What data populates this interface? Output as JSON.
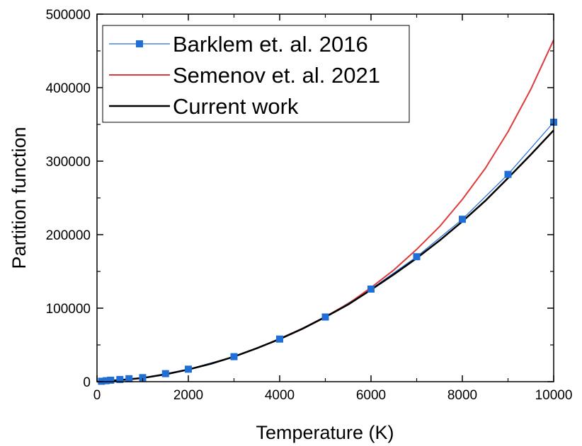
{
  "chart_data": {
    "type": "line",
    "title": "",
    "xlabel": "Temperature (K)",
    "ylabel": "Partition function",
    "xlim": [
      0,
      10000
    ],
    "ylim": [
      0,
      500000
    ],
    "x_ticks": [
      0,
      2000,
      4000,
      6000,
      8000,
      10000
    ],
    "y_ticks": [
      0,
      100000,
      200000,
      300000,
      400000,
      500000
    ],
    "x_tick_labels": [
      "0",
      "2000",
      "4000",
      "6000",
      "8000",
      "10000"
    ],
    "y_tick_labels": [
      "0",
      "100000",
      "200000",
      "300000",
      "400000",
      "500000"
    ],
    "grid": false,
    "legend_position": "top-left",
    "series": [
      {
        "name": "Barklem et. al. 2016",
        "color": "#1f6fd6",
        "style": "line-square-markers",
        "x": [
          100,
          200,
          300,
          500,
          700,
          1000,
          1500,
          2000,
          3000,
          4000,
          5000,
          6000,
          7000,
          8000,
          9000,
          10000
        ],
        "y": [
          600,
          1300,
          2000,
          3000,
          4000,
          5500,
          11000,
          17000,
          34000,
          58000,
          88000,
          126000,
          170000,
          221000,
          282000,
          353000
        ]
      },
      {
        "name": "Semenov et. al. 2021",
        "color": "#e03a3a",
        "style": "line",
        "x": [
          0,
          500,
          1000,
          1500,
          2000,
          2500,
          3000,
          3500,
          4000,
          4500,
          5000,
          5500,
          6000,
          6500,
          7000,
          7500,
          8000,
          8500,
          9000,
          9500,
          10000
        ],
        "y": [
          0,
          2000,
          5000,
          10000,
          16500,
          24500,
          34000,
          45500,
          58500,
          72500,
          88500,
          106000,
          128000,
          152000,
          180000,
          211000,
          248000,
          290000,
          340000,
          398000,
          465000
        ]
      },
      {
        "name": "Current work",
        "color": "#000000",
        "style": "line",
        "x": [
          0,
          500,
          1000,
          1500,
          2000,
          2500,
          3000,
          3500,
          4000,
          4500,
          5000,
          5500,
          6000,
          6500,
          7000,
          7500,
          8000,
          8500,
          9000,
          9500,
          10000
        ],
        "y": [
          0,
          2000,
          5000,
          10000,
          16500,
          24500,
          34000,
          45500,
          58000,
          72000,
          88000,
          105000,
          125000,
          146000,
          168000,
          192000,
          218000,
          246000,
          277000,
          309000,
          342000
        ]
      }
    ]
  }
}
